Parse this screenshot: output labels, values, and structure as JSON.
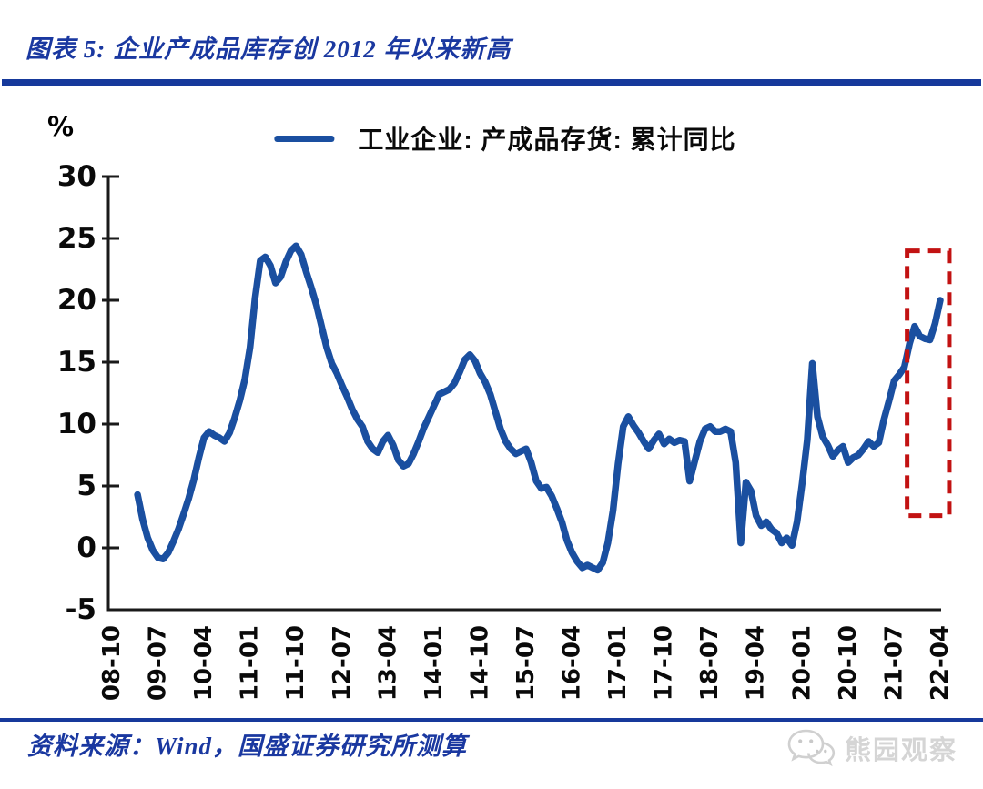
{
  "header": {
    "title": "图表 5: 企业产成品库存创 2012 年以来新高"
  },
  "footer": {
    "source": "资料来源：Wind，国盛证券研究所测算",
    "watermark": "熊园观察",
    "watermark_icon": "wechat-icon"
  },
  "colors": {
    "accent_navy": "#16399B",
    "line_blue": "#1A4FA0",
    "highlight_red": "#C21212",
    "axis_black": "#1a1a1a",
    "watermark_gray": "#d5d5d5"
  },
  "chart_data": {
    "type": "line",
    "title": "企业产成品库存创 2012 年以来新高",
    "unit_label": "%",
    "grid": "off",
    "legend_position": "top-center",
    "ylim": [
      -5,
      30
    ],
    "y_ticks": [
      30,
      25,
      20,
      15,
      10,
      5,
      0,
      -5
    ],
    "x_start": "2008-10",
    "x_end": "2022-04",
    "x_tick_labels": [
      "08-10",
      "09-07",
      "10-04",
      "11-01",
      "11-10",
      "12-07",
      "13-04",
      "14-01",
      "14-10",
      "15-07",
      "16-04",
      "17-01",
      "17-10",
      "18-07",
      "19-04",
      "20-01",
      "20-10",
      "21-07",
      "22-04"
    ],
    "legend": [
      {
        "label": "工业企业: 产成品存货: 累计同比",
        "color": "#1A4FA0"
      }
    ],
    "series": [
      {
        "name": "工业企业: 产成品存货: 累计同比",
        "color": "#1A4FA0",
        "points": [
          [
            "2009-03",
            4.3
          ],
          [
            "2009-04",
            2.3
          ],
          [
            "2009-05",
            0.8
          ],
          [
            "2009-06",
            -0.2
          ],
          [
            "2009-07",
            -0.8
          ],
          [
            "2009-08",
            -0.9
          ],
          [
            "2009-09",
            -0.4
          ],
          [
            "2009-10",
            0.5
          ],
          [
            "2009-11",
            1.5
          ],
          [
            "2009-12",
            2.7
          ],
          [
            "2010-01",
            4.0
          ],
          [
            "2010-02",
            5.5
          ],
          [
            "2010-03",
            7.3
          ],
          [
            "2010-04",
            8.9
          ],
          [
            "2010-05",
            9.4
          ],
          [
            "2010-06",
            9.1
          ],
          [
            "2010-07",
            8.9
          ],
          [
            "2010-08",
            8.6
          ],
          [
            "2010-09",
            9.3
          ],
          [
            "2010-10",
            10.5
          ],
          [
            "2010-11",
            11.9
          ],
          [
            "2010-12",
            13.6
          ],
          [
            "2011-01",
            16.2
          ],
          [
            "2011-02",
            20.2
          ],
          [
            "2011-03",
            23.2
          ],
          [
            "2011-04",
            23.5
          ],
          [
            "2011-05",
            22.8
          ],
          [
            "2011-06",
            21.4
          ],
          [
            "2011-07",
            21.9
          ],
          [
            "2011-08",
            23.1
          ],
          [
            "2011-09",
            24.0
          ],
          [
            "2011-10",
            24.4
          ],
          [
            "2011-11",
            23.7
          ],
          [
            "2011-12",
            22.3
          ],
          [
            "2012-01",
            21.0
          ],
          [
            "2012-02",
            19.6
          ],
          [
            "2012-03",
            17.9
          ],
          [
            "2012-04",
            16.2
          ],
          [
            "2012-05",
            14.9
          ],
          [
            "2012-06",
            14.1
          ],
          [
            "2012-07",
            13.1
          ],
          [
            "2012-08",
            12.2
          ],
          [
            "2012-09",
            11.2
          ],
          [
            "2012-10",
            10.4
          ],
          [
            "2012-11",
            9.8
          ],
          [
            "2012-12",
            8.6
          ],
          [
            "2013-01",
            8.0
          ],
          [
            "2013-02",
            7.7
          ],
          [
            "2013-03",
            8.6
          ],
          [
            "2013-04",
            9.1
          ],
          [
            "2013-05",
            8.3
          ],
          [
            "2013-06",
            7.1
          ],
          [
            "2013-07",
            6.6
          ],
          [
            "2013-08",
            6.8
          ],
          [
            "2013-09",
            7.6
          ],
          [
            "2013-10",
            8.6
          ],
          [
            "2013-11",
            9.7
          ],
          [
            "2013-12",
            10.6
          ],
          [
            "2014-01",
            11.5
          ],
          [
            "2014-02",
            12.4
          ],
          [
            "2014-03",
            12.6
          ],
          [
            "2014-04",
            12.8
          ],
          [
            "2014-05",
            13.3
          ],
          [
            "2014-06",
            14.2
          ],
          [
            "2014-07",
            15.2
          ],
          [
            "2014-08",
            15.6
          ],
          [
            "2014-09",
            15.1
          ],
          [
            "2014-10",
            14.1
          ],
          [
            "2014-11",
            13.4
          ],
          [
            "2014-12",
            12.4
          ],
          [
            "2015-01",
            11.0
          ],
          [
            "2015-02",
            9.6
          ],
          [
            "2015-03",
            8.6
          ],
          [
            "2015-04",
            8.0
          ],
          [
            "2015-05",
            7.6
          ],
          [
            "2015-06",
            7.8
          ],
          [
            "2015-07",
            8.0
          ],
          [
            "2015-08",
            6.9
          ],
          [
            "2015-09",
            5.4
          ],
          [
            "2015-10",
            4.8
          ],
          [
            "2015-11",
            4.9
          ],
          [
            "2015-12",
            4.2
          ],
          [
            "2016-01",
            3.2
          ],
          [
            "2016-02",
            2.1
          ],
          [
            "2016-03",
            0.6
          ],
          [
            "2016-04",
            -0.4
          ],
          [
            "2016-05",
            -1.1
          ],
          [
            "2016-06",
            -1.6
          ],
          [
            "2016-07",
            -1.4
          ],
          [
            "2016-08",
            -1.6
          ],
          [
            "2016-09",
            -1.8
          ],
          [
            "2016-10",
            -1.2
          ],
          [
            "2016-11",
            0.4
          ],
          [
            "2016-12",
            3.0
          ],
          [
            "2017-01",
            6.8
          ],
          [
            "2017-02",
            9.8
          ],
          [
            "2017-03",
            10.6
          ],
          [
            "2017-04",
            9.9
          ],
          [
            "2017-05",
            9.3
          ],
          [
            "2017-06",
            8.6
          ],
          [
            "2017-07",
            8.0
          ],
          [
            "2017-08",
            8.7
          ],
          [
            "2017-09",
            9.2
          ],
          [
            "2017-10",
            8.4
          ],
          [
            "2017-11",
            8.8
          ],
          [
            "2017-12",
            8.5
          ],
          [
            "2018-01",
            8.7
          ],
          [
            "2018-02",
            8.6
          ],
          [
            "2018-03",
            5.4
          ],
          [
            "2018-04",
            7.0
          ],
          [
            "2018-05",
            8.6
          ],
          [
            "2018-06",
            9.6
          ],
          [
            "2018-07",
            9.8
          ],
          [
            "2018-08",
            9.4
          ],
          [
            "2018-09",
            9.4
          ],
          [
            "2018-10",
            9.6
          ],
          [
            "2018-11",
            9.4
          ],
          [
            "2018-12",
            6.9
          ],
          [
            "2019-01",
            0.4
          ],
          [
            "2019-02",
            5.3
          ],
          [
            "2019-03",
            4.6
          ],
          [
            "2019-04",
            2.6
          ],
          [
            "2019-05",
            1.8
          ],
          [
            "2019-06",
            2.1
          ],
          [
            "2019-07",
            1.5
          ],
          [
            "2019-08",
            1.2
          ],
          [
            "2019-09",
            0.4
          ],
          [
            "2019-10",
            0.8
          ],
          [
            "2019-11",
            0.2
          ],
          [
            "2019-12",
            2.1
          ],
          [
            "2020-01",
            5.2
          ],
          [
            "2020-02",
            8.7
          ],
          [
            "2020-03",
            14.9
          ],
          [
            "2020-04",
            10.6
          ],
          [
            "2020-05",
            9.0
          ],
          [
            "2020-06",
            8.3
          ],
          [
            "2020-07",
            7.4
          ],
          [
            "2020-08",
            7.9
          ],
          [
            "2020-09",
            8.2
          ],
          [
            "2020-10",
            6.9
          ],
          [
            "2020-11",
            7.3
          ],
          [
            "2020-12",
            7.5
          ],
          [
            "2021-01",
            8.0
          ],
          [
            "2021-02",
            8.6
          ],
          [
            "2021-03",
            8.2
          ],
          [
            "2021-04",
            8.5
          ],
          [
            "2021-05",
            10.4
          ],
          [
            "2021-06",
            11.9
          ],
          [
            "2021-07",
            13.5
          ],
          [
            "2021-08",
            14.0
          ],
          [
            "2021-09",
            14.6
          ],
          [
            "2021-10",
            16.5
          ],
          [
            "2021-11",
            17.9
          ],
          [
            "2021-12",
            17.1
          ],
          [
            "2022-01",
            16.9
          ],
          [
            "2022-02",
            16.8
          ],
          [
            "2022-03",
            18.1
          ],
          [
            "2022-04",
            20.0
          ]
        ]
      }
    ],
    "highlight_box": {
      "shape": "dashed-rectangle",
      "color": "#C21212",
      "x_from": "2021-09",
      "x_to": "2022-04",
      "y_from": 2.6,
      "y_to": 24.0
    }
  }
}
